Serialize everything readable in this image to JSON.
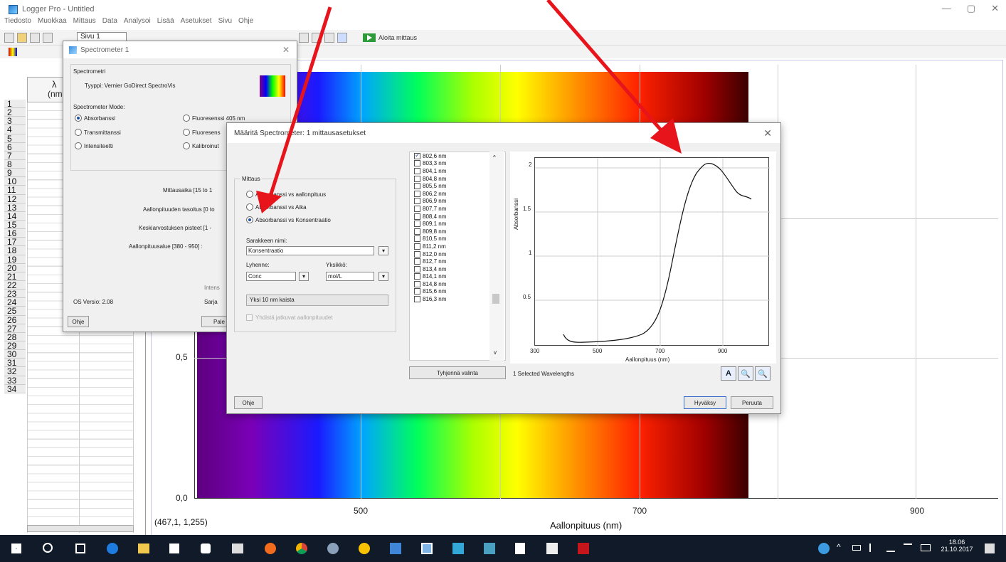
{
  "window": {
    "title": "Logger Pro - Untitled",
    "min": "—",
    "max": "▢",
    "close": "✕"
  },
  "menus": [
    "Tiedosto",
    "Muokkaa",
    "Mittaus",
    "Data",
    "Analysoi",
    "Lisää",
    "Asetukset",
    "Sivu",
    "Ohje"
  ],
  "toolbar": {
    "page_selector": "Sivu 1",
    "start_label": "Aloita mittaus"
  },
  "table": {
    "column_symbol": "λ",
    "column_unit": "(nm",
    "rows": [
      "1",
      "2",
      "3",
      "4",
      "5",
      "6",
      "7",
      "8",
      "9",
      "10",
      "11",
      "12",
      "13",
      "14",
      "15",
      "16",
      "17",
      "18",
      "19",
      "20",
      "21",
      "22",
      "23",
      "24",
      "25",
      "26",
      "27",
      "28",
      "29",
      "30",
      "31",
      "32",
      "33",
      "34"
    ]
  },
  "graph": {
    "coordinate_readout": "(467,1, 1,255)",
    "xlabel": "Aallonpituus (nm)",
    "xticks": [
      "500",
      "700",
      "900"
    ],
    "yticks": [
      "0,5",
      "0,0"
    ]
  },
  "spectrometer_dialog": {
    "title": "Spectrometer 1",
    "close": "✕",
    "section_label": "Spectrometri",
    "type_text": "Tyyppi: Vernier GoDirect SpectroVis",
    "mode_label": "Spectrometer Mode:",
    "modes": [
      {
        "label": "Absorbanssi",
        "selected": true
      },
      {
        "label": "Transmittanssi",
        "selected": false
      },
      {
        "label": "Intensiteetti",
        "selected": false
      },
      {
        "label": "Fluoresenssi 405 nm",
        "selected": false
      },
      {
        "label": "Fluoresens",
        "selected": false
      },
      {
        "label": "Kalibroinut",
        "selected": false
      }
    ],
    "settings": [
      "Mittausaika [15 to 1",
      "Aallonpituuden tasoitus [0 to",
      "Keskiarvostuksen pisteet [1 -",
      "Aallonpituusalue [380 - 950] :"
    ],
    "os_version": "OS Versio: 2.08",
    "inten": "Intens",
    "sarja": "Sarja",
    "help_button": "Ohje",
    "pale_button": "Pale"
  },
  "setup_dialog": {
    "title": "Määritä Spectrometer: 1 mittausasetukset",
    "close": "✕",
    "group_title": "Mittaus",
    "modes": [
      {
        "label": "Absorbanssi vs aallonpituus",
        "selected": false
      },
      {
        "label": "Absorbanssi vs Aika",
        "selected": false
      },
      {
        "label": "Absorbanssi vs Konsentraatio",
        "selected": true
      }
    ],
    "column_name_label": "Sarakkeen nimi:",
    "column_name_value": "Konsentraatio",
    "short_label": "Lyhenne:",
    "short_value": "Conc",
    "units_label": "Yksikkö:",
    "units_value": "mol/L",
    "band_combo": "Yksi 10 nm kaista",
    "combine_check": "Yhdistä jatkuvat aallonpituudet",
    "dd_arrow": "▾",
    "scroll_up": "^",
    "scroll_down": "v",
    "wavelengths": [
      {
        "label": "802,6 nm",
        "checked": true
      },
      {
        "label": "803,3 nm",
        "checked": false
      },
      {
        "label": "804,1 nm",
        "checked": false
      },
      {
        "label": "804,8 nm",
        "checked": false
      },
      {
        "label": "805,5 nm",
        "checked": false
      },
      {
        "label": "806,2 nm",
        "checked": false
      },
      {
        "label": "806,9 nm",
        "checked": false
      },
      {
        "label": "807,7 nm",
        "checked": false
      },
      {
        "label": "808,4 nm",
        "checked": false
      },
      {
        "label": "809,1 nm",
        "checked": false
      },
      {
        "label": "809,8 nm",
        "checked": false
      },
      {
        "label": "810,5 nm",
        "checked": false
      },
      {
        "label": "811,2 nm",
        "checked": false
      },
      {
        "label": "812,0 nm",
        "checked": false
      },
      {
        "label": "812,7 nm",
        "checked": false
      },
      {
        "label": "813,4 nm",
        "checked": false
      },
      {
        "label": "814,1 nm",
        "checked": false
      },
      {
        "label": "814,8 nm",
        "checked": false
      },
      {
        "label": "815,6 nm",
        "checked": false
      },
      {
        "label": "816,3 nm",
        "checked": false
      }
    ],
    "clear_button": "Tyhjennä valinta",
    "selected_info": "1 Selected Wavelengths",
    "help_button": "Ohje",
    "ok_button": "Hyväksy",
    "cancel_button": "Peruuta",
    "tool_a": "A",
    "tool_zoom_in": "🔍",
    "tool_zoom_out": "🔍",
    "mini_graph": {
      "ylabel": "Absorbanssi",
      "xlabel": "Aallonpituus (nm)",
      "xticks": [
        "300",
        "500",
        "700",
        "900"
      ],
      "yticks": [
        "2",
        "1.5",
        "1",
        "0.5"
      ]
    }
  },
  "taskbar": {
    "clock_time": "18.06",
    "clock_date": "21.10.2017"
  },
  "colors": {
    "arrow": "#e8141b",
    "taskbar": "#101a28",
    "accent": "#1a4fa0"
  }
}
